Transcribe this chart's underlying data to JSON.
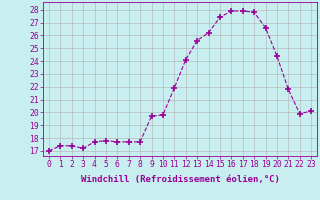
{
  "x": [
    0,
    1,
    2,
    3,
    4,
    5,
    6,
    7,
    8,
    9,
    10,
    11,
    12,
    13,
    14,
    15,
    16,
    17,
    18,
    19,
    20,
    21,
    22,
    23
  ],
  "y": [
    17.0,
    17.4,
    17.4,
    17.2,
    17.7,
    17.8,
    17.7,
    17.7,
    17.7,
    19.7,
    19.8,
    21.9,
    24.1,
    25.6,
    26.2,
    27.4,
    27.9,
    27.9,
    27.8,
    26.6,
    24.4,
    21.8,
    19.9,
    20.1
  ],
  "line_color": "#990099",
  "marker": "+",
  "marker_size": 4,
  "marker_lw": 1.2,
  "bg_color": "#c8eef0",
  "grid_color": "#b0b0b0",
  "ylabel_ticks": [
    17,
    18,
    19,
    20,
    21,
    22,
    23,
    24,
    25,
    26,
    27,
    28
  ],
  "ylim": [
    16.6,
    28.6
  ],
  "xlim": [
    -0.5,
    23.5
  ],
  "xlabel": "Windchill (Refroidissement éolien,°C)",
  "xlabel_fontsize": 6.5,
  "tick_fontsize": 5.8,
  "axis_label_color": "#990099",
  "tick_color": "#990099",
  "line_width": 0.8
}
